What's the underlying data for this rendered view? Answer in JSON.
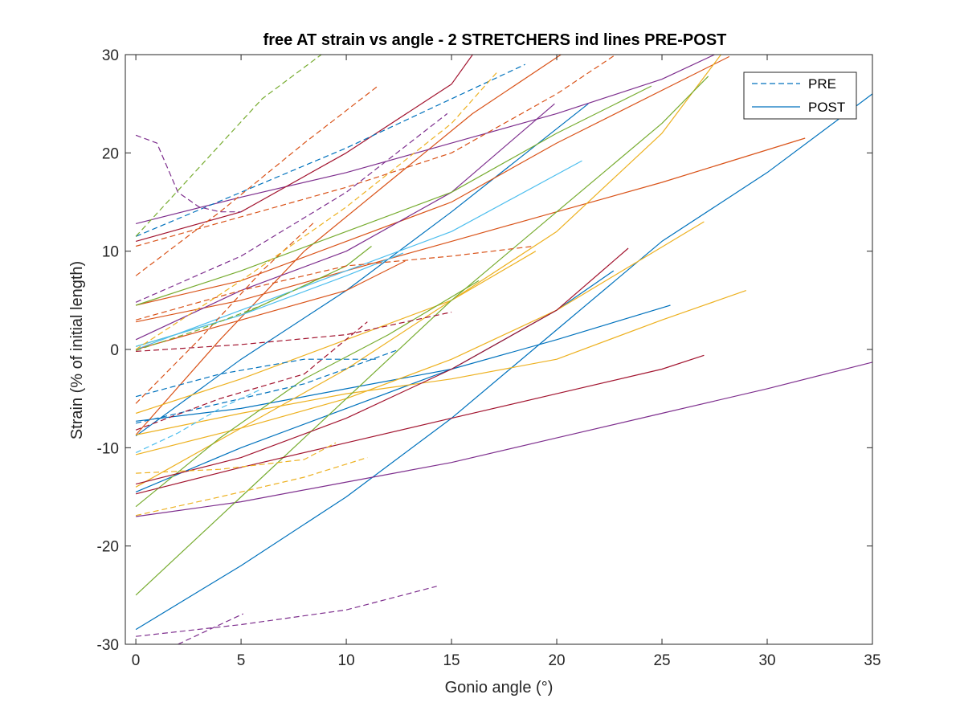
{
  "chart_data": {
    "type": "line",
    "title": "free AT strain vs angle - 2 STRETCHERS ind lines PRE-POST",
    "xlabel": "Gonio angle (°)",
    "ylabel": "Strain (% of initial length)",
    "xlim": [
      -0.5,
      35
    ],
    "ylim": [
      -30,
      30
    ],
    "xticks": [
      0,
      5,
      10,
      15,
      20,
      25,
      30,
      35
    ],
    "yticks": [
      -30,
      -20,
      -10,
      0,
      10,
      20,
      30
    ],
    "xtick_labels": [
      "0",
      "5",
      "10",
      "15",
      "20",
      "25",
      "30",
      "35"
    ],
    "ytick_labels": [
      "-30",
      "-20",
      "-10",
      "0",
      "10",
      "20",
      "30"
    ],
    "grid": false,
    "legend": {
      "location": "top-right",
      "entries": [
        {
          "label": "PRE",
          "style": "dashed",
          "color": "#0072BD"
        },
        {
          "label": "POST",
          "style": "solid",
          "color": "#0072BD"
        }
      ]
    },
    "series": [
      {
        "style": "solid",
        "color": "#0072BD",
        "x": [
          0,
          5,
          10,
          15,
          20,
          25,
          30,
          35
        ],
        "y": [
          -28.5,
          -22,
          -15,
          -7,
          2,
          11,
          18,
          26
        ]
      },
      {
        "style": "solid",
        "color": "#0072BD",
        "x": [
          0,
          5,
          10,
          15,
          21.5
        ],
        "y": [
          -8.8,
          -1,
          6,
          14,
          25
        ]
      },
      {
        "style": "solid",
        "color": "#0072BD",
        "x": [
          0,
          5,
          10,
          15,
          20,
          25.4
        ],
        "y": [
          -7.3,
          -6,
          -4,
          -2,
          1,
          4.5
        ]
      },
      {
        "style": "solid",
        "color": "#0072BD",
        "x": [
          0,
          5,
          10,
          15,
          20,
          22.7
        ],
        "y": [
          -14.5,
          -10,
          -6,
          -2,
          4,
          8
        ]
      },
      {
        "style": "solid",
        "color": "#D95319",
        "x": [
          0,
          5,
          10,
          15,
          20,
          25,
          31.8
        ],
        "y": [
          2.8,
          5,
          8,
          11,
          14,
          17,
          21.5
        ]
      },
      {
        "style": "solid",
        "color": "#D95319",
        "x": [
          0,
          5,
          10,
          15,
          20,
          28.2
        ],
        "y": [
          4.5,
          7,
          11,
          15,
          21,
          29.8
        ]
      },
      {
        "style": "solid",
        "color": "#D95319",
        "x": [
          0,
          4,
          8,
          12,
          16,
          20.2
        ],
        "y": [
          -8.7,
          1,
          10,
          17,
          24,
          30
        ]
      },
      {
        "style": "solid",
        "color": "#D95319",
        "x": [
          0,
          5,
          10,
          12.8
        ],
        "y": [
          0,
          3,
          6,
          9
        ]
      },
      {
        "style": "solid",
        "color": "#EDB120",
        "x": [
          0,
          5,
          10,
          15,
          20,
          27
        ],
        "y": [
          -10.7,
          -8,
          -5,
          -1,
          4,
          13
        ]
      },
      {
        "style": "solid",
        "color": "#EDB120",
        "x": [
          0,
          5,
          10,
          15,
          20,
          25,
          29
        ],
        "y": [
          -8.7,
          -6.5,
          -4.5,
          -3,
          -1,
          3,
          6
        ]
      },
      {
        "style": "solid",
        "color": "#EDB120",
        "x": [
          0,
          5,
          10,
          15,
          20,
          25,
          27.8
        ],
        "y": [
          -14,
          -8,
          -2,
          5,
          12,
          22,
          30
        ]
      },
      {
        "style": "solid",
        "color": "#EDB120",
        "x": [
          0,
          5,
          10,
          15,
          19
        ],
        "y": [
          -6.5,
          -3,
          1,
          5,
          10
        ]
      },
      {
        "style": "solid",
        "color": "#7E2F8E",
        "x": [
          0,
          5,
          10,
          15,
          20,
          25,
          30,
          35
        ],
        "y": [
          -17,
          -15.5,
          -13.5,
          -11.5,
          -9,
          -6.5,
          -4,
          -1.3
        ]
      },
      {
        "style": "solid",
        "color": "#7E2F8E",
        "x": [
          0,
          5,
          10,
          15,
          20,
          25,
          27.5
        ],
        "y": [
          12.8,
          15.5,
          18,
          21,
          24,
          27.5,
          30
        ]
      },
      {
        "style": "solid",
        "color": "#7E2F8E",
        "x": [
          0,
          5,
          10,
          15,
          19.9
        ],
        "y": [
          1,
          6,
          10,
          16,
          25
        ]
      },
      {
        "style": "solid",
        "color": "#77AC30",
        "x": [
          0,
          5,
          10,
          15,
          20,
          25,
          27.2
        ],
        "y": [
          -25,
          -15,
          -5,
          5,
          14,
          23,
          27.8
        ]
      },
      {
        "style": "solid",
        "color": "#77AC30",
        "x": [
          0,
          5,
          10,
          15,
          20,
          24.5
        ],
        "y": [
          4.5,
          8,
          12,
          16,
          22,
          26.8
        ]
      },
      {
        "style": "solid",
        "color": "#77AC30",
        "x": [
          0,
          4,
          8,
          12,
          16.3
        ],
        "y": [
          -16,
          -9,
          -3,
          1.5,
          7
        ]
      },
      {
        "style": "solid",
        "color": "#77AC30",
        "x": [
          0,
          5,
          10,
          11.2
        ],
        "y": [
          0.3,
          3.5,
          8.5,
          10.5
        ]
      },
      {
        "style": "solid",
        "color": "#4DBEEE",
        "x": [
          0,
          5,
          10,
          15,
          21.2
        ],
        "y": [
          0,
          4,
          8,
          12,
          19.2
        ]
      },
      {
        "style": "solid",
        "color": "#4DBEEE",
        "x": [
          0,
          5,
          10,
          12.7
        ],
        "y": [
          0.3,
          3.5,
          7.5,
          9.8
        ]
      },
      {
        "style": "solid",
        "color": "#A2142F",
        "x": [
          0,
          5,
          10,
          15,
          20,
          25,
          27
        ],
        "y": [
          -14.7,
          -12,
          -9.5,
          -7,
          -4.5,
          -2,
          -0.6
        ]
      },
      {
        "style": "solid",
        "color": "#A2142F",
        "x": [
          0,
          5,
          10,
          15,
          16
        ],
        "y": [
          11,
          14,
          20,
          27,
          30
        ]
      },
      {
        "style": "solid",
        "color": "#A2142F",
        "x": [
          0,
          5,
          10,
          15,
          20,
          23.4
        ],
        "y": [
          -13.7,
          -11,
          -7,
          -2,
          4,
          10.3
        ]
      },
      {
        "style": "dashed",
        "color": "#0072BD",
        "x": [
          0,
          4,
          8,
          11.5
        ],
        "y": [
          -4.8,
          -2.5,
          -1,
          -1
        ]
      },
      {
        "style": "dashed",
        "color": "#0072BD",
        "x": [
          0,
          5,
          10,
          15,
          18.5
        ],
        "y": [
          11.5,
          16,
          20.5,
          25.5,
          29
        ]
      },
      {
        "style": "dashed",
        "color": "#0072BD",
        "x": [
          0,
          4,
          8,
          12.5
        ],
        "y": [
          -7.5,
          -5.5,
          -3.5,
          0
        ]
      },
      {
        "style": "dashed",
        "color": "#D95319",
        "x": [
          0,
          5,
          10,
          15,
          20,
          22.8
        ],
        "y": [
          10.5,
          13.5,
          16.5,
          20,
          26,
          30
        ]
      },
      {
        "style": "dashed",
        "color": "#D95319",
        "x": [
          0,
          4,
          8,
          11.5
        ],
        "y": [
          7.5,
          14,
          21,
          26.8
        ]
      },
      {
        "style": "dashed",
        "color": "#D95319",
        "x": [
          0,
          5,
          10,
          15,
          18.9
        ],
        "y": [
          3,
          6,
          8.5,
          9.5,
          10.5
        ]
      },
      {
        "style": "dashed",
        "color": "#D95319",
        "x": [
          0,
          3,
          6,
          8.5
        ],
        "y": [
          -5.5,
          1,
          8,
          13
        ]
      },
      {
        "style": "dashed",
        "color": "#EDB120",
        "x": [
          0,
          4,
          8,
          11
        ],
        "y": [
          -16.9,
          -15,
          -13,
          -11
        ]
      },
      {
        "style": "dashed",
        "color": "#EDB120",
        "x": [
          0,
          4,
          8,
          9.5
        ],
        "y": [
          -12.6,
          -12.2,
          -11.2,
          -9.5
        ]
      },
      {
        "style": "dashed",
        "color": "#EDB120",
        "x": [
          0,
          5,
          10,
          15,
          17.2
        ],
        "y": [
          0,
          7,
          14.5,
          23,
          28.3
        ]
      },
      {
        "style": "dashed",
        "color": "#7E2F8E",
        "x": [
          0,
          1,
          2,
          3,
          4,
          5
        ],
        "y": [
          21.8,
          21,
          16,
          14.5,
          14,
          14
        ]
      },
      {
        "style": "dashed",
        "color": "#7E2F8E",
        "x": [
          0,
          5,
          10,
          14.3
        ],
        "y": [
          -29.2,
          -28,
          -26.5,
          -24.1
        ]
      },
      {
        "style": "dashed",
        "color": "#7E2F8E",
        "x": [
          2,
          3.5,
          5.1
        ],
        "y": [
          -30,
          -28.5,
          -26.9
        ]
      },
      {
        "style": "dashed",
        "color": "#7E2F8E",
        "x": [
          0,
          5,
          10,
          14.8
        ],
        "y": [
          4.8,
          9.5,
          16,
          24
        ]
      },
      {
        "style": "dashed",
        "color": "#77AC30",
        "x": [
          0,
          3,
          6,
          9
        ],
        "y": [
          11.5,
          18.5,
          25.5,
          30.3
        ]
      },
      {
        "style": "dashed",
        "color": "#77AC30",
        "x": [
          0,
          3,
          6,
          9
        ],
        "y": [
          -0.1,
          2,
          4.5,
          7.5
        ]
      },
      {
        "style": "dashed",
        "color": "#4DBEEE",
        "x": [
          0,
          2,
          4,
          6
        ],
        "y": [
          -10.5,
          -8.5,
          -6,
          -4
        ]
      },
      {
        "style": "dashed",
        "color": "#A2142F",
        "x": [
          0,
          5,
          10,
          15
        ],
        "y": [
          -0.2,
          0.5,
          1.5,
          3.8
        ]
      },
      {
        "style": "dashed",
        "color": "#A2142F",
        "x": [
          0,
          4,
          8,
          11
        ],
        "y": [
          -8.2,
          -5,
          -2.5,
          2.8
        ]
      }
    ]
  }
}
